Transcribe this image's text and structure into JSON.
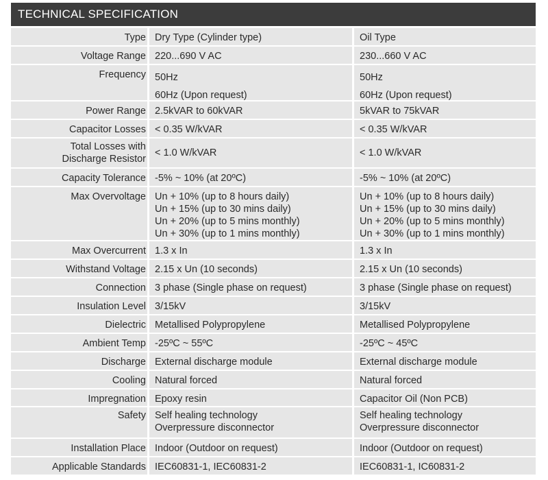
{
  "title": "TECHNICAL SPECIFICATION",
  "rows": [
    {
      "label": [
        "Type"
      ],
      "dry": [
        "Dry Type (Cylinder type)"
      ],
      "oil": [
        "Oil Type"
      ]
    },
    {
      "label": [
        "Voltage Range"
      ],
      "dry": [
        "220...690 V AC"
      ],
      "oil": [
        "230...660 V AC"
      ]
    },
    {
      "label": [
        "Frequency"
      ],
      "dry": [
        "50Hz",
        "60Hz (Upon request)"
      ],
      "oil": [
        "50Hz",
        "60Hz (Upon request)"
      ]
    },
    {
      "label": [
        "Power Range"
      ],
      "dry": [
        "2.5kVAR to 60kVAR"
      ],
      "oil": [
        "5kVAR  to 75kVAR"
      ]
    },
    {
      "label": [
        "Capacitor Losses"
      ],
      "dry": [
        "< 0.35 W/kVAR"
      ],
      "oil": [
        "< 0.35 W/kVAR"
      ]
    },
    {
      "label": [
        "Total Losses with",
        "Discharge Resistor"
      ],
      "dry": [
        "< 1.0 W/kVAR"
      ],
      "oil": [
        "< 1.0 W/kVAR"
      ]
    },
    {
      "label": [
        "Capacity Tolerance"
      ],
      "dry": [
        "-5% ~ 10% (at 20ºC)"
      ],
      "oil": [
        "-5% ~ 10% (at 20ºC)"
      ]
    },
    {
      "label": [
        "Max Overvoltage"
      ],
      "dry": [
        "Un + 10% (up to 8 hours daily)",
        "Un + 15% (up to 30 mins daily)",
        "Un + 20% (up to 5 mins monthly)",
        "Un + 30% (up to 1 mins monthly)"
      ],
      "oil": [
        "Un + 10% (up to 8 hours daily)",
        "Un + 15% (up to 30 mins daily)",
        "Un + 20% (up to 5 mins monthly)",
        "Un + 30% (up to 1 mins monthly)"
      ]
    },
    {
      "label": [
        "Max Overcurrent"
      ],
      "dry": [
        "1.3 x In"
      ],
      "oil": [
        "1.3 x In"
      ]
    },
    {
      "label": [
        "Withstand Voltage"
      ],
      "dry": [
        "2.15 x Un (10 seconds)"
      ],
      "oil": [
        "2.15 x Un (10 seconds)"
      ]
    },
    {
      "label": [
        "Connection"
      ],
      "dry": [
        "3 phase (Single phase on request)"
      ],
      "oil": [
        "3 phase (Single phase on request)"
      ]
    },
    {
      "label": [
        "Insulation Level"
      ],
      "dry": [
        "3/15kV"
      ],
      "oil": [
        "3/15kV"
      ]
    },
    {
      "label": [
        "Dielectric"
      ],
      "dry": [
        "Metallised Polypropylene"
      ],
      "oil": [
        "Metallised Polypropylene"
      ]
    },
    {
      "label": [
        "Ambient Temp"
      ],
      "dry": [
        "-25ºC ~ 55ºC"
      ],
      "oil": [
        "-25ºC ~ 45ºC"
      ]
    },
    {
      "label": [
        "Discharge"
      ],
      "dry": [
        "External discharge module"
      ],
      "oil": [
        "External discharge module"
      ]
    },
    {
      "label": [
        "Cooling"
      ],
      "dry": [
        "Natural forced"
      ],
      "oil": [
        "Natural forced"
      ]
    },
    {
      "label": [
        "Impregnation"
      ],
      "dry": [
        "Epoxy resin"
      ],
      "oil": [
        "Capacitor Oil (Non PCB)"
      ]
    },
    {
      "label": [
        "Safety"
      ],
      "dry": [
        "Self healing technology",
        "Overpressure disconnector"
      ],
      "oil": [
        "Self healing technology",
        "Overpressure disconnector"
      ]
    },
    {
      "label": [
        "Installation Place"
      ],
      "dry": [
        "Indoor (Outdoor on request)"
      ],
      "oil": [
        "Indoor (Outdoor on request)"
      ]
    },
    {
      "label": [
        "Applicable Standards"
      ],
      "dry": [
        "IEC60831-1, IEC60831-2"
      ],
      "oil": [
        "IEC60831-1, IC60831-2"
      ]
    }
  ]
}
